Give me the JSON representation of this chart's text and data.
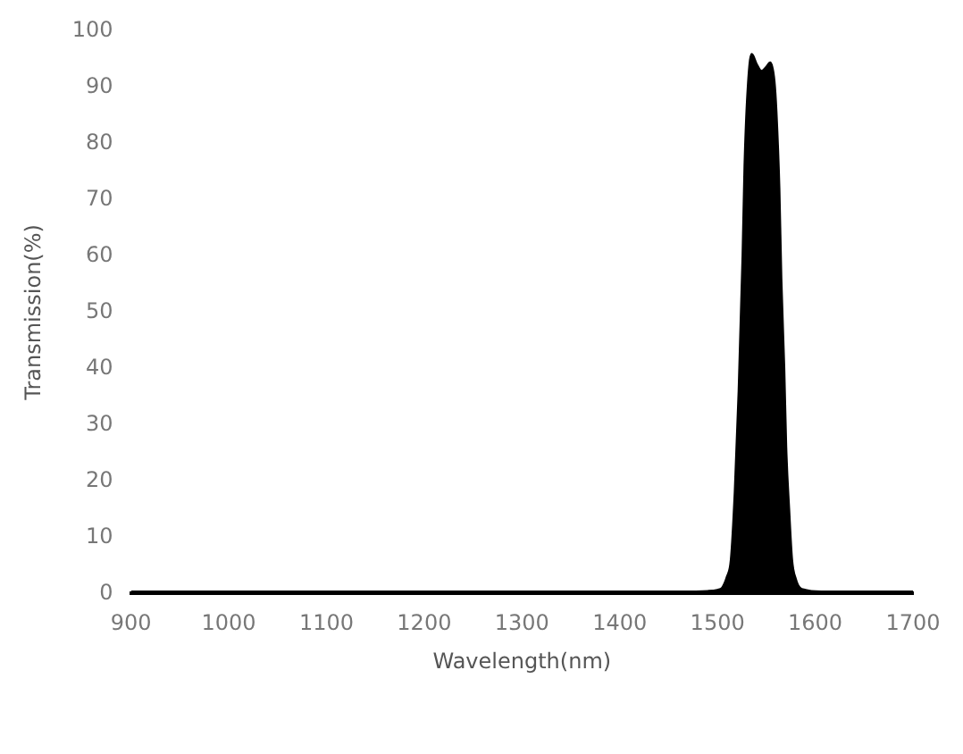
{
  "chart_data": {
    "type": "area",
    "xlabel": "Wavelength(nm)",
    "ylabel": "Transmission(%)",
    "xlim": [
      900,
      1700
    ],
    "xticks": [
      900,
      1000,
      1100,
      1200,
      1300,
      1400,
      1500,
      1600,
      1700
    ],
    "ylim": [
      0,
      100
    ],
    "yticks": [
      0,
      10,
      20,
      30,
      40,
      50,
      60,
      70,
      80,
      90,
      100
    ],
    "grid": false,
    "legend": false,
    "series": [
      {
        "color": "#000000",
        "x": [
          900,
          1000,
          1100,
          1200,
          1300,
          1400,
          1450,
          1490,
          1500,
          1505,
          1510,
          1514,
          1518,
          1522,
          1526,
          1528,
          1531,
          1535,
          1540,
          1545,
          1550,
          1554,
          1558,
          1560,
          1563,
          1565,
          1568,
          1570,
          1573,
          1576,
          1580,
          1584,
          1590,
          1596,
          1620,
          1660,
          1700
        ],
        "values": [
          0.3,
          0.3,
          0.3,
          0.3,
          0.3,
          0.3,
          0.3,
          0.4,
          0.6,
          1,
          3,
          6,
          18,
          36,
          60,
          76,
          89,
          95.8,
          94,
          92.8,
          93.5,
          94.3,
          91,
          85.6,
          72,
          56,
          40,
          26,
          15,
          6,
          2.5,
          1,
          0.6,
          0.4,
          0.3,
          0.3,
          0.3
        ]
      }
    ]
  }
}
